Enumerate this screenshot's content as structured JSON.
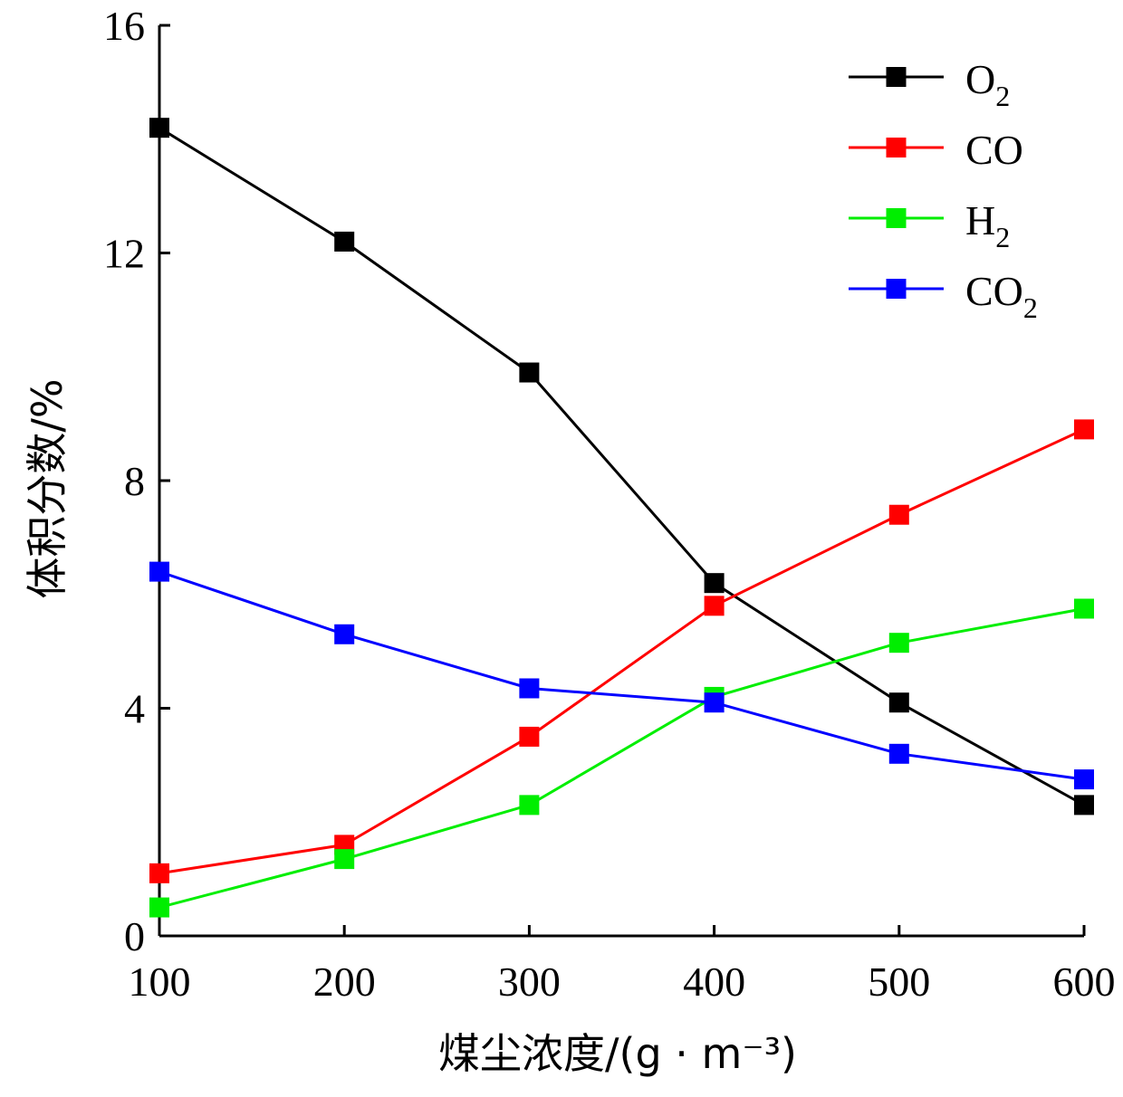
{
  "chart_data": {
    "type": "line",
    "title": "",
    "xlabel": "煤尘浓度/(g · m⁻³)",
    "ylabel": "体积分数/%",
    "xlim": [
      100,
      600
    ],
    "ylim": [
      0,
      16
    ],
    "x_ticks": [
      100,
      200,
      300,
      400,
      500,
      600
    ],
    "y_ticks": [
      0,
      4,
      8,
      12,
      16
    ],
    "legend_position": "top-right",
    "grid": false,
    "x": [
      100,
      200,
      300,
      400,
      500,
      600
    ],
    "series": [
      {
        "name": "O2",
        "label": "O",
        "subscript": "2",
        "color": "#000000",
        "values": [
          14.2,
          12.2,
          9.9,
          6.2,
          4.1,
          2.3
        ]
      },
      {
        "name": "CO",
        "label": "CO",
        "subscript": "",
        "color": "#ff0000",
        "values": [
          1.1,
          1.6,
          3.5,
          5.8,
          7.4,
          8.9
        ]
      },
      {
        "name": "H2",
        "label": "H",
        "subscript": "2",
        "color": "#00ee00",
        "values": [
          0.5,
          1.35,
          2.3,
          4.2,
          5.15,
          5.75
        ]
      },
      {
        "name": "CO2",
        "label": "CO",
        "subscript": "2",
        "color": "#0000ff",
        "values": [
          6.4,
          5.3,
          4.35,
          4.1,
          3.2,
          2.75
        ]
      }
    ]
  }
}
